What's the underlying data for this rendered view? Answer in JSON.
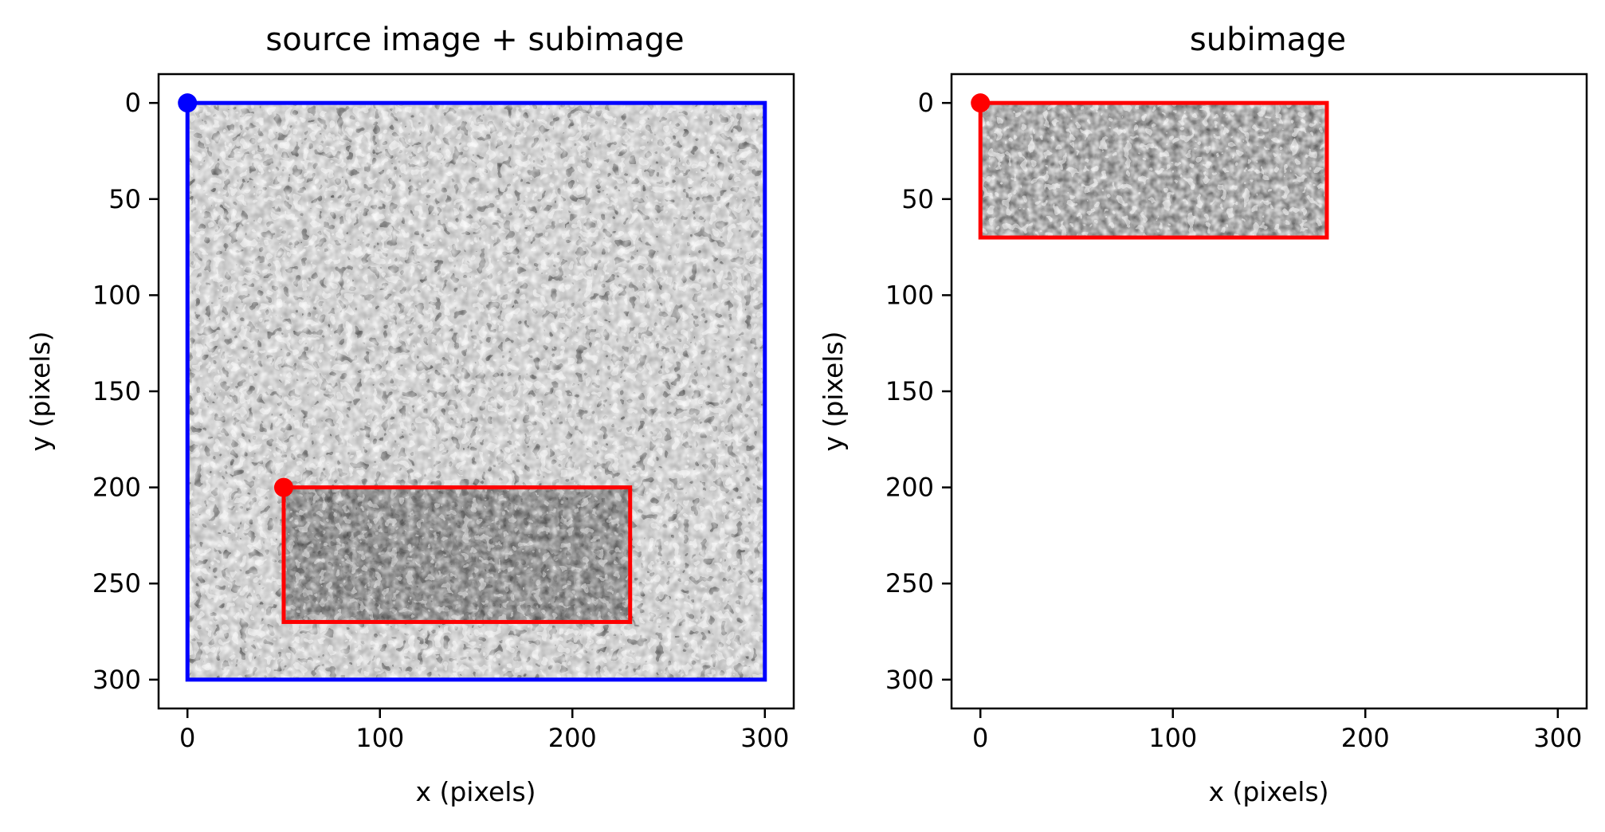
{
  "chart_data": [
    {
      "type": "image",
      "title": "source image + subimage",
      "xlabel": "x (pixels)",
      "ylabel": "y (pixels)",
      "xlim": [
        -15,
        315
      ],
      "ylim": [
        315,
        -15
      ],
      "xticks": [
        0,
        100,
        200,
        300
      ],
      "yticks": [
        0,
        50,
        100,
        150,
        200,
        250,
        300
      ],
      "tick_labels_x": [
        "0",
        "100",
        "200",
        "300"
      ],
      "tick_labels_y": [
        "0",
        "50",
        "100",
        "150",
        "200",
        "250",
        "300"
      ],
      "image_extent": {
        "x0": 0,
        "y0": 0,
        "x1": 300,
        "y1": 300
      },
      "rectangles": [
        {
          "name": "source-outline",
          "x": 0,
          "y": 0,
          "width": 300,
          "height": 300,
          "color": "#0000ff"
        },
        {
          "name": "subimage-outline",
          "x": 50,
          "y": 200,
          "width": 180,
          "height": 70,
          "color": "#ff0000"
        }
      ],
      "points": [
        {
          "name": "source-origin",
          "x": 0,
          "y": 0,
          "color": "#0000ff"
        },
        {
          "name": "subimage-origin",
          "x": 50,
          "y": 200,
          "color": "#ff0000"
        }
      ]
    },
    {
      "type": "image",
      "title": "subimage",
      "xlabel": "x (pixels)",
      "ylabel": "y (pixels)",
      "xlim": [
        -15,
        315
      ],
      "ylim": [
        315,
        -15
      ],
      "xticks": [
        0,
        100,
        200,
        300
      ],
      "yticks": [
        0,
        50,
        100,
        150,
        200,
        250,
        300
      ],
      "tick_labels_x": [
        "0",
        "100",
        "200",
        "300"
      ],
      "tick_labels_y": [
        "0",
        "50",
        "100",
        "150",
        "200",
        "250",
        "300"
      ],
      "image_extent": {
        "x0": 0,
        "y0": 0,
        "x1": 180,
        "y1": 70
      },
      "rectangles": [
        {
          "name": "subimage-outline",
          "x": 0,
          "y": 0,
          "width": 180,
          "height": 70,
          "color": "#ff0000"
        }
      ],
      "points": [
        {
          "name": "subimage-origin",
          "x": 0,
          "y": 0,
          "color": "#ff0000"
        }
      ]
    }
  ]
}
